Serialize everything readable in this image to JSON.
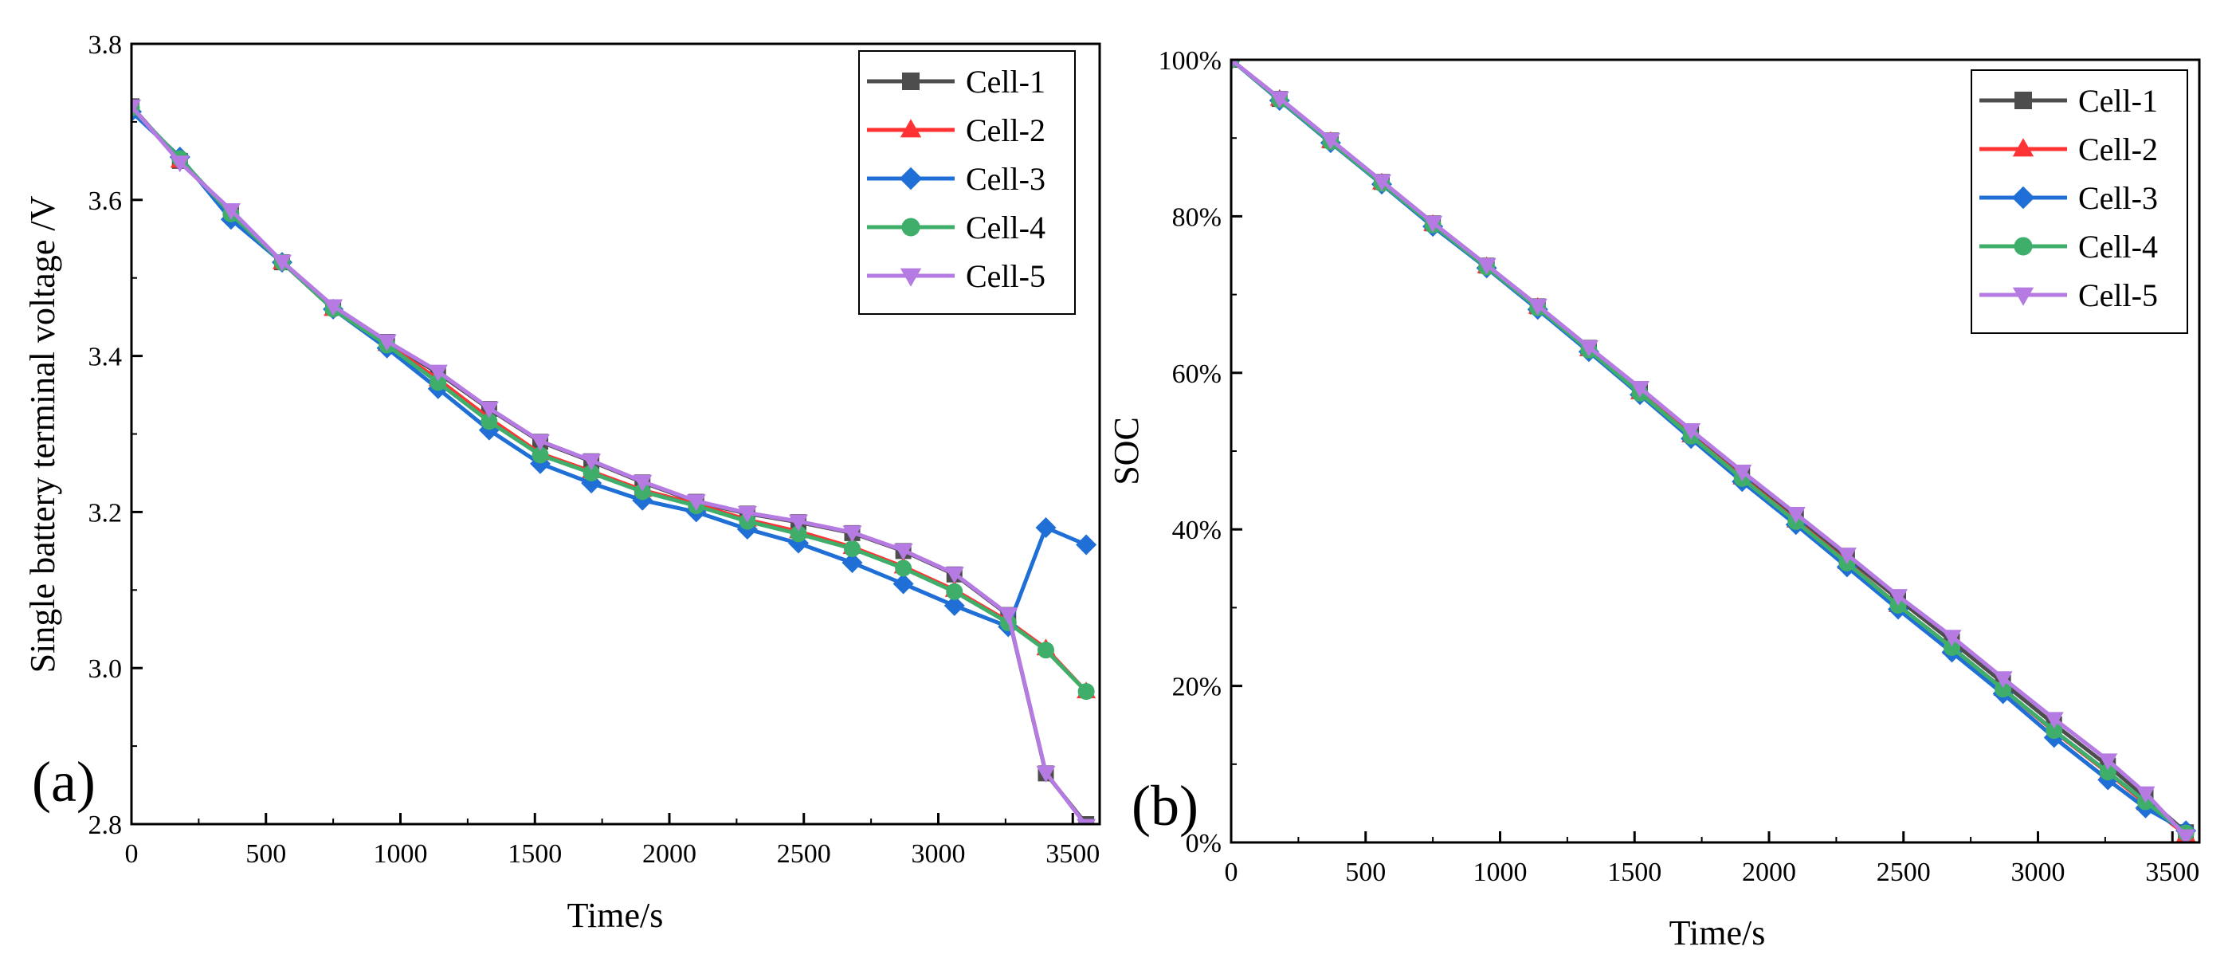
{
  "colors": {
    "Cell-1": "#4d4d4d",
    "Cell-2": "#ff3333",
    "Cell-3": "#1f6fd6",
    "Cell-4": "#3fae6a",
    "Cell-5": "#b57be3"
  },
  "chart_data": [
    {
      "type": "line",
      "panel_label": "(a)",
      "title": "",
      "xlabel": "Time/s",
      "ylabel": "Single battery terminal voltage /V",
      "xlim": [
        0,
        3600
      ],
      "ylim": [
        2.8,
        3.8
      ],
      "xticks": [
        0,
        500,
        1000,
        1500,
        2000,
        2500,
        3000,
        3500
      ],
      "xtick_labels": [
        "0",
        "500",
        "1000",
        "1500",
        "2000",
        "2500",
        "3000",
        "3500"
      ],
      "yticks": [
        2.8,
        3.0,
        3.2,
        3.4,
        3.6,
        3.8
      ],
      "ytick_labels": [
        "2.8",
        "3.0",
        "3.2",
        "3.4",
        "3.6",
        "3.8"
      ],
      "legend_position": "top-right",
      "series": [
        {
          "name": "Cell-1",
          "marker": "square",
          "x": [
            0,
            180,
            370,
            560,
            750,
            950,
            1140,
            1330,
            1520,
            1710,
            1900,
            2100,
            2290,
            2480,
            2680,
            2870,
            3060,
            3260,
            3400,
            3550
          ],
          "y": [
            3.72,
            3.65,
            3.585,
            3.52,
            3.462,
            3.418,
            3.378,
            3.332,
            3.29,
            3.265,
            3.238,
            3.213,
            3.198,
            3.187,
            3.173,
            3.15,
            3.12,
            3.068,
            2.865,
            2.8
          ]
        },
        {
          "name": "Cell-2",
          "marker": "triangle-up",
          "x": [
            0,
            180,
            370,
            560,
            750,
            950,
            1140,
            1330,
            1520,
            1710,
            1900,
            2100,
            2290,
            2480,
            2680,
            2870,
            3060,
            3260,
            3400,
            3550
          ],
          "y": [
            3.718,
            3.65,
            3.583,
            3.52,
            3.46,
            3.415,
            3.37,
            3.32,
            3.275,
            3.252,
            3.228,
            3.21,
            3.19,
            3.175,
            3.155,
            3.13,
            3.1,
            3.06,
            3.025,
            2.97
          ]
        },
        {
          "name": "Cell-3",
          "marker": "diamond",
          "x": [
            0,
            180,
            370,
            560,
            750,
            950,
            1140,
            1330,
            1520,
            1710,
            1900,
            2100,
            2290,
            2480,
            2680,
            2870,
            3060,
            3260,
            3400,
            3550
          ],
          "y": [
            3.713,
            3.655,
            3.575,
            3.52,
            3.46,
            3.41,
            3.358,
            3.305,
            3.262,
            3.237,
            3.215,
            3.2,
            3.178,
            3.16,
            3.135,
            3.108,
            3.08,
            3.053,
            3.18,
            3.158
          ]
        },
        {
          "name": "Cell-4",
          "marker": "circle",
          "x": [
            0,
            180,
            370,
            560,
            750,
            950,
            1140,
            1330,
            1520,
            1710,
            1900,
            2100,
            2290,
            2480,
            2680,
            2870,
            3060,
            3260,
            3400,
            3550
          ],
          "y": [
            3.718,
            3.653,
            3.582,
            3.52,
            3.46,
            3.414,
            3.366,
            3.316,
            3.273,
            3.25,
            3.226,
            3.208,
            3.188,
            3.172,
            3.153,
            3.128,
            3.098,
            3.058,
            3.023,
            2.97
          ]
        },
        {
          "name": "Cell-5",
          "marker": "triangle-down",
          "x": [
            0,
            180,
            370,
            560,
            750,
            950,
            1140,
            1330,
            1520,
            1710,
            1900,
            2100,
            2290,
            2480,
            2680,
            2870,
            3060,
            3260,
            3400,
            3550
          ],
          "y": [
            3.72,
            3.648,
            3.587,
            3.521,
            3.464,
            3.419,
            3.38,
            3.333,
            3.291,
            3.266,
            3.239,
            3.214,
            3.199,
            3.188,
            3.174,
            3.151,
            3.121,
            3.069,
            2.866,
            2.798
          ]
        }
      ]
    },
    {
      "type": "line",
      "panel_label": "(b)",
      "title": "",
      "xlabel": "Time/s",
      "ylabel": "SOC",
      "xlim": [
        0,
        3600
      ],
      "ylim": [
        0,
        100
      ],
      "xticks": [
        0,
        500,
        1000,
        1500,
        2000,
        2500,
        3000,
        3500
      ],
      "xtick_labels": [
        "0",
        "500",
        "1000",
        "1500",
        "2000",
        "2500",
        "3000",
        "3500"
      ],
      "yticks": [
        0,
        20,
        40,
        60,
        80,
        100
      ],
      "ytick_labels": [
        "0%",
        "20%",
        "40%",
        "60%",
        "80%",
        "100%"
      ],
      "legend_position": "top-right",
      "series": [
        {
          "name": "Cell-1",
          "marker": "square",
          "x": [
            0,
            180,
            370,
            560,
            750,
            950,
            1140,
            1330,
            1520,
            1710,
            1900,
            2100,
            2290,
            2480,
            2680,
            2870,
            3060,
            3260,
            3400,
            3550
          ],
          "y": [
            100,
            95,
            89.7,
            84.4,
            79.1,
            73.7,
            68.5,
            63.2,
            57.9,
            52.4,
            47.1,
            41.7,
            36.4,
            31.1,
            25.7,
            20.4,
            15.1,
            9.8,
            5.8,
            1.3
          ]
        },
        {
          "name": "Cell-2",
          "marker": "triangle-up",
          "x": [
            0,
            180,
            370,
            560,
            750,
            950,
            1140,
            1330,
            1520,
            1710,
            1900,
            2100,
            2290,
            2480,
            2680,
            2870,
            3060,
            3260,
            3400,
            3550
          ],
          "y": [
            100,
            95,
            89.6,
            84.3,
            79,
            73.6,
            68.4,
            63,
            57.5,
            52,
            46.6,
            41.1,
            35.8,
            30.3,
            24.9,
            19.6,
            14.2,
            8.9,
            5,
            1
          ]
        },
        {
          "name": "Cell-3",
          "marker": "diamond",
          "x": [
            0,
            180,
            370,
            560,
            750,
            950,
            1140,
            1330,
            1520,
            1710,
            1900,
            2100,
            2290,
            2480,
            2680,
            2870,
            3060,
            3260,
            3400,
            3550
          ],
          "y": [
            100,
            94.8,
            89.4,
            84.1,
            78.7,
            73.4,
            68.1,
            62.7,
            57.2,
            51.6,
            46.1,
            40.6,
            35.2,
            29.8,
            24.3,
            19,
            13.4,
            8,
            4.4,
            1.5
          ]
        },
        {
          "name": "Cell-4",
          "marker": "circle",
          "x": [
            0,
            180,
            370,
            560,
            750,
            950,
            1140,
            1330,
            1520,
            1710,
            1900,
            2100,
            2290,
            2480,
            2680,
            2870,
            3060,
            3260,
            3400,
            3550
          ],
          "y": [
            100,
            94.9,
            89.5,
            84.2,
            78.9,
            73.5,
            68.3,
            62.9,
            57.4,
            51.9,
            46.5,
            41,
            35.7,
            30.3,
            24.9,
            19.6,
            14.3,
            9,
            5.2,
            1.2
          ]
        },
        {
          "name": "Cell-5",
          "marker": "triangle-down",
          "x": [
            0,
            180,
            370,
            560,
            750,
            950,
            1140,
            1330,
            1520,
            1710,
            1900,
            2100,
            2290,
            2480,
            2680,
            2870,
            3060,
            3260,
            3400,
            3550
          ],
          "y": [
            100,
            95.1,
            89.8,
            84.5,
            79.2,
            73.8,
            68.6,
            63.3,
            58.1,
            52.7,
            47.4,
            42,
            36.8,
            31.5,
            26.3,
            21,
            15.8,
            10.5,
            6.3,
            0.8
          ]
        }
      ]
    }
  ]
}
